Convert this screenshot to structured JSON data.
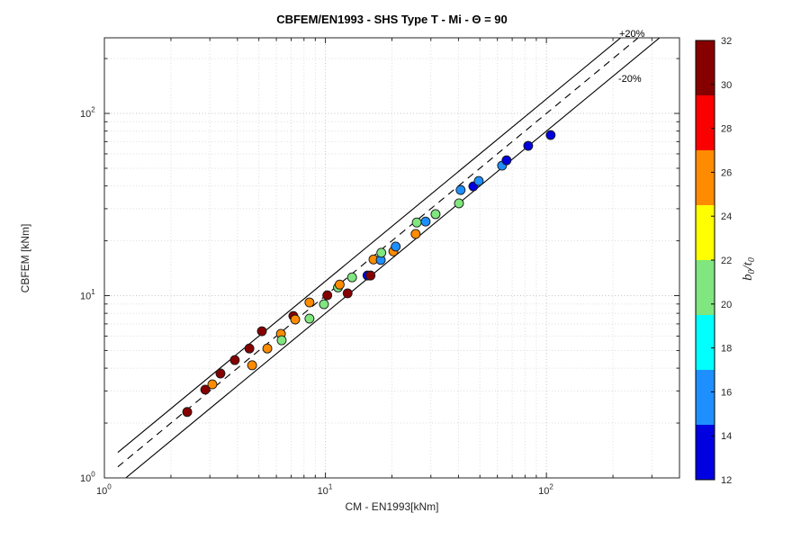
{
  "chart_data": {
    "type": "scatter",
    "title": "CBFEM/EN1993 - SHS Type T - Mi - Θ = 90",
    "xlabel": "CM - EN1993[kNm]",
    "ylabel": "CBFEM [kNm]",
    "xscale": "log",
    "yscale": "log",
    "xlim": [
      1,
      400
    ],
    "ylim": [
      1,
      260
    ],
    "x_major_ticks": [
      1,
      10,
      100
    ],
    "y_major_ticks": [
      1,
      10,
      100
    ],
    "x_minor_ticks": [
      2,
      3,
      4,
      5,
      6,
      7,
      8,
      9,
      20,
      30,
      40,
      50,
      60,
      70,
      80,
      90,
      200,
      300
    ],
    "y_minor_ticks": [
      2,
      3,
      4,
      5,
      6,
      7,
      8,
      9,
      20,
      30,
      40,
      50,
      60,
      70,
      80,
      90,
      200
    ],
    "grid": true,
    "reference_lines": [
      {
        "factor": 1.2,
        "style": "solid",
        "label": "+20%"
      },
      {
        "factor": 1.0,
        "style": "dashed",
        "label": ""
      },
      {
        "factor": 0.8,
        "style": "solid",
        "label": "-20%"
      }
    ],
    "colorbar": {
      "label": "b0/t0",
      "label_parts": [
        {
          "t": "b",
          "sub": false
        },
        {
          "t": "0",
          "sub": true
        },
        {
          "t": "/",
          "sub": false
        },
        {
          "t": "t",
          "sub": false
        },
        {
          "t": "0",
          "sub": true
        }
      ],
      "min": 12,
      "max": 32,
      "ticks": [
        12,
        14,
        16,
        18,
        20,
        22,
        24,
        26,
        28,
        30,
        32
      ],
      "bands": [
        {
          "range": [
            12.0,
            14.5
          ],
          "color": "#0000E0"
        },
        {
          "range": [
            14.5,
            17.0
          ],
          "color": "#1E8FFF"
        },
        {
          "range": [
            17.0,
            19.5
          ],
          "color": "#00FFFF"
        },
        {
          "range": [
            19.5,
            22.0
          ],
          "color": "#80E67F"
        },
        {
          "range": [
            22.0,
            24.5
          ],
          "color": "#FFFF00"
        },
        {
          "range": [
            24.5,
            27.0
          ],
          "color": "#FF8C00"
        },
        {
          "range": [
            27.0,
            29.5
          ],
          "color": "#FA0000"
        },
        {
          "range": [
            29.5,
            32.0
          ],
          "color": "#860000"
        }
      ]
    },
    "points": [
      {
        "x": 2.37,
        "y": 2.3,
        "b0t0": 30
      },
      {
        "x": 2.86,
        "y": 3.05,
        "b0t0": 30
      },
      {
        "x": 3.08,
        "y": 3.26,
        "b0t0": 26
      },
      {
        "x": 3.35,
        "y": 3.74,
        "b0t0": 30
      },
      {
        "x": 3.89,
        "y": 4.43,
        "b0t0": 30
      },
      {
        "x": 4.66,
        "y": 4.15,
        "b0t0": 26
      },
      {
        "x": 4.53,
        "y": 5.13,
        "b0t0": 30
      },
      {
        "x": 5.46,
        "y": 5.13,
        "b0t0": 26
      },
      {
        "x": 5.16,
        "y": 6.38,
        "b0t0": 30
      },
      {
        "x": 6.29,
        "y": 6.17,
        "b0t0": 26
      },
      {
        "x": 6.34,
        "y": 5.69,
        "b0t0": 20
      },
      {
        "x": 7.16,
        "y": 7.74,
        "b0t0": 30
      },
      {
        "x": 7.3,
        "y": 7.4,
        "b0t0": 26
      },
      {
        "x": 8.47,
        "y": 7.48,
        "b0t0": 20
      },
      {
        "x": 8.47,
        "y": 9.18,
        "b0t0": 26
      },
      {
        "x": 9.85,
        "y": 8.97,
        "b0t0": 20
      },
      {
        "x": 10.2,
        "y": 10.05,
        "b0t0": 30
      },
      {
        "x": 11.4,
        "y": 11.1,
        "b0t0": 20
      },
      {
        "x": 11.6,
        "y": 11.5,
        "b0t0": 26
      },
      {
        "x": 12.6,
        "y": 10.3,
        "b0t0": 30
      },
      {
        "x": 13.2,
        "y": 12.6,
        "b0t0": 20
      },
      {
        "x": 15.5,
        "y": 12.9,
        "b0t0": 13
      },
      {
        "x": 16.0,
        "y": 12.9,
        "b0t0": 30
      },
      {
        "x": 16.5,
        "y": 15.8,
        "b0t0": 26
      },
      {
        "x": 17.8,
        "y": 15.7,
        "b0t0": 16
      },
      {
        "x": 17.9,
        "y": 17.2,
        "b0t0": 20
      },
      {
        "x": 20.3,
        "y": 17.5,
        "b0t0": 26
      },
      {
        "x": 20.8,
        "y": 18.6,
        "b0t0": 16
      },
      {
        "x": 25.6,
        "y": 21.8,
        "b0t0": 26
      },
      {
        "x": 25.9,
        "y": 25.2,
        "b0t0": 20
      },
      {
        "x": 28.4,
        "y": 25.5,
        "b0t0": 16
      },
      {
        "x": 31.5,
        "y": 28.0,
        "b0t0": 20
      },
      {
        "x": 40.2,
        "y": 32.1,
        "b0t0": 20
      },
      {
        "x": 40.9,
        "y": 38.0,
        "b0t0": 16
      },
      {
        "x": 46.7,
        "y": 39.8,
        "b0t0": 13
      },
      {
        "x": 49.4,
        "y": 42.6,
        "b0t0": 16
      },
      {
        "x": 63.0,
        "y": 51.7,
        "b0t0": 16
      },
      {
        "x": 66.0,
        "y": 55.3,
        "b0t0": 13
      },
      {
        "x": 82.7,
        "y": 66.4,
        "b0t0": 13
      },
      {
        "x": 104.5,
        "y": 76.1,
        "b0t0": 13
      }
    ],
    "style_colors": {
      "axis": "#262626",
      "major_grid": "#c4c4c4",
      "minor_grid": "#dcdcdc",
      "marker_edge": "#1a1a1a",
      "line": "#000000"
    }
  }
}
